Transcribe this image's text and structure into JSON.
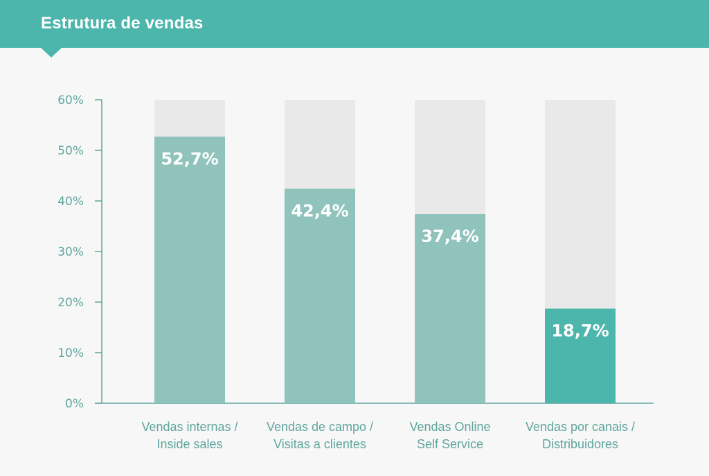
{
  "header": {
    "title": "Estrutura de vendas"
  },
  "colors": {
    "header": "#4db6ac",
    "bar": "#8fc3bc",
    "bar_highlight": "#4db6ac",
    "bar_background": "#e9e9e9",
    "axis": "#5fa59d",
    "value_text": "#ffffff"
  },
  "chart_data": {
    "type": "bar",
    "categories": [
      [
        "Vendas internas /",
        "Inside sales"
      ],
      [
        "Vendas de campo /",
        "Visitas a clientes"
      ],
      [
        "Vendas Online",
        "Self Service"
      ],
      [
        "Vendas por canais /",
        "Distribuidores"
      ]
    ],
    "values": [
      52.7,
      42.4,
      37.4,
      18.7
    ],
    "value_labels": [
      "52,7%",
      "42,4%",
      "37,4%",
      "18,7%"
    ],
    "highlight_index": 3,
    "ylim": [
      0,
      60
    ],
    "yticks": [
      0,
      10,
      20,
      30,
      40,
      50,
      60
    ],
    "ytick_labels": [
      "0%",
      "10%",
      "20%",
      "30%",
      "40%",
      "50%",
      "60%"
    ],
    "grid": false,
    "legend": "none"
  }
}
